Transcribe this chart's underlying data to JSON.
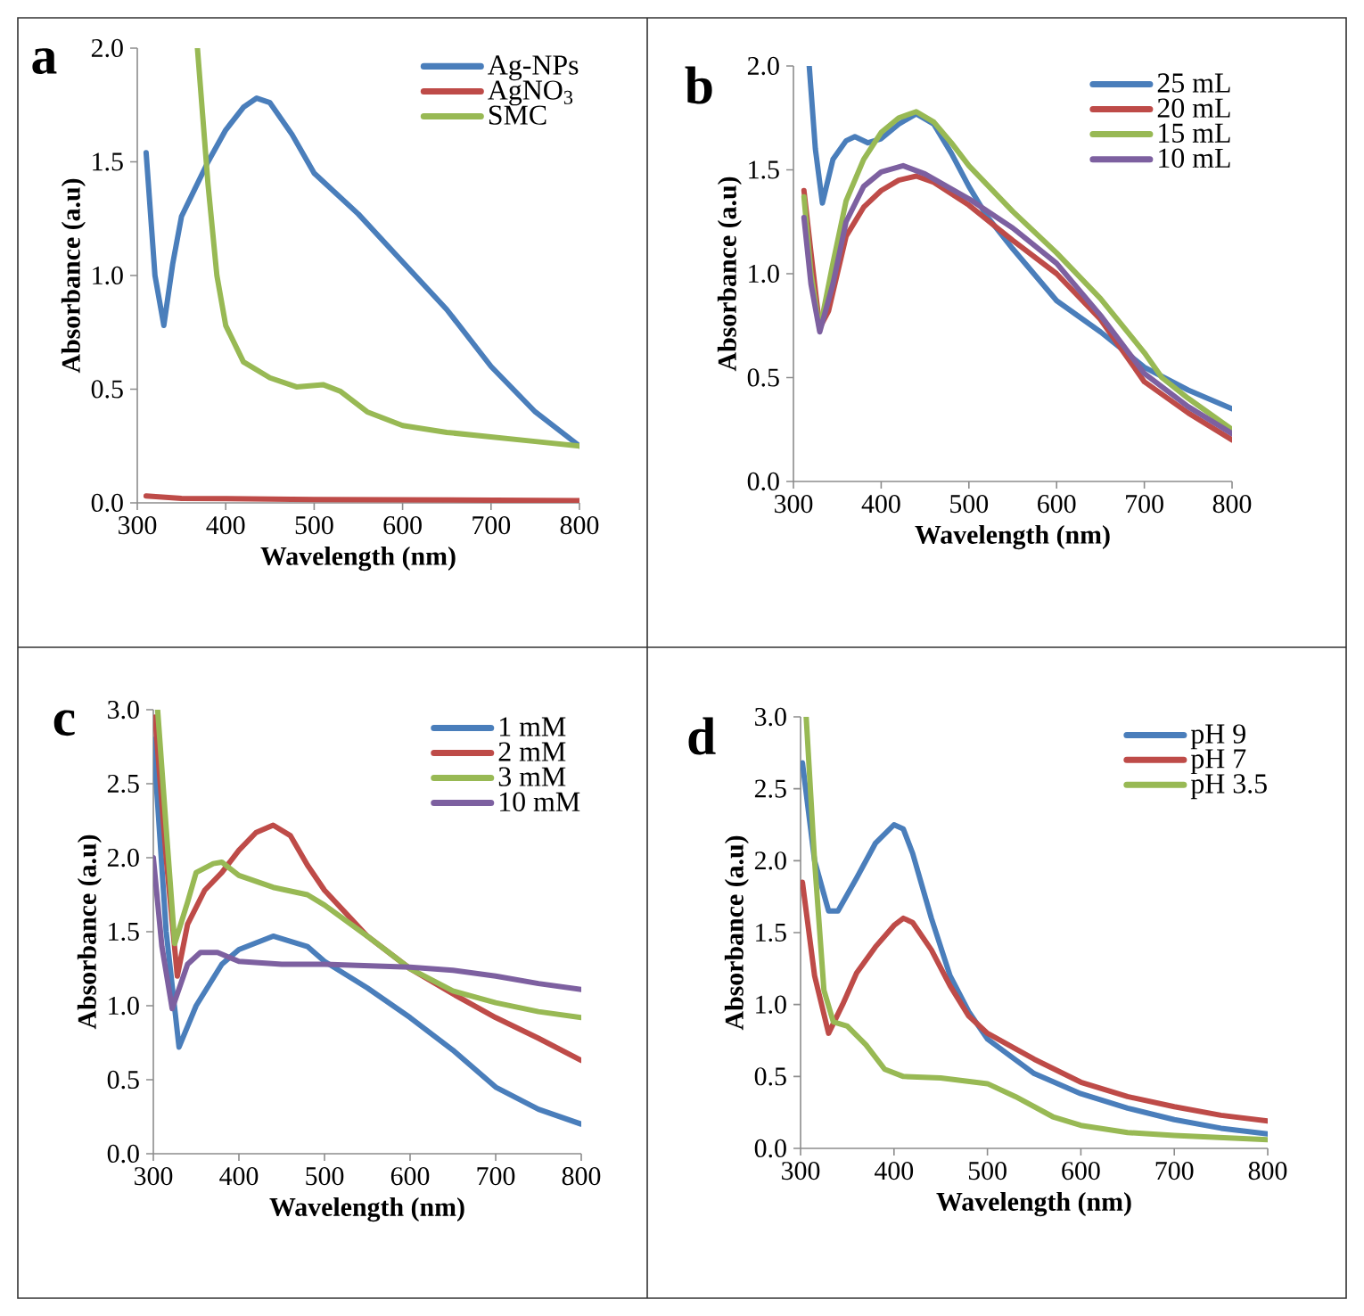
{
  "chart_data": [
    {
      "type": "line",
      "title": "a",
      "xlabel": "Wavelength (nm)",
      "ylabel": "Absorbance (a.u)",
      "xlim": [
        300,
        800
      ],
      "ylim": [
        0,
        2
      ],
      "xticks": [
        300,
        400,
        500,
        600,
        700,
        800
      ],
      "yticks": [
        {
          "value": 0,
          "label": "0.0"
        },
        {
          "value": 0.5,
          "label": "0.5"
        },
        {
          "value": 1,
          "label": "1.0"
        },
        {
          "value": 1.5,
          "label": "1.5"
        },
        {
          "value": 2,
          "label": "2.0"
        }
      ],
      "legend": "top right",
      "series": [
        {
          "name": "Ag-NPs",
          "color": "#4a7ebb",
          "x": [
            310,
            320,
            330,
            340,
            350,
            365,
            380,
            400,
            420,
            435,
            450,
            475,
            500,
            550,
            600,
            650,
            700,
            750,
            800
          ],
          "values": [
            1.54,
            1.0,
            0.78,
            1.05,
            1.26,
            1.38,
            1.5,
            1.64,
            1.74,
            1.78,
            1.76,
            1.62,
            1.45,
            1.27,
            1.06,
            0.85,
            0.6,
            0.4,
            0.25
          ]
        },
        {
          "name": "AgNO$_{3}$",
          "color": "#be4b48",
          "x": [
            310,
            350,
            500,
            800
          ],
          "values": [
            0.03,
            0.02,
            0.015,
            0.01
          ]
        },
        {
          "name": "SMC",
          "color": "#98b954",
          "x": [
            368,
            380,
            390,
            400,
            420,
            450,
            480,
            510,
            530,
            560,
            600,
            650,
            700,
            750,
            800
          ],
          "values": [
            2.0,
            1.4,
            1.0,
            0.78,
            0.62,
            0.55,
            0.51,
            0.52,
            0.49,
            0.4,
            0.34,
            0.31,
            0.29,
            0.27,
            0.25
          ]
        }
      ]
    },
    {
      "type": "line",
      "title": "b",
      "xlabel": "Wavelength (nm)",
      "ylabel": "Absorbance (a.u)",
      "xlim": [
        300,
        800
      ],
      "ylim": [
        0,
        2
      ],
      "xticks": [
        300,
        400,
        500,
        600,
        700,
        800
      ],
      "yticks": [
        {
          "value": 0,
          "label": "0.0"
        },
        {
          "value": 0.5,
          "label": "0.5"
        },
        {
          "value": 1,
          "label": "1.0"
        },
        {
          "value": 1.5,
          "label": "1.5"
        },
        {
          "value": 2,
          "label": "2.0"
        }
      ],
      "legend": "top right",
      "series": [
        {
          "name": "25 mL",
          "color": "#4a7ebb",
          "x": [
            318,
            325,
            333,
            345,
            360,
            370,
            385,
            400,
            420,
            440,
            460,
            480,
            500,
            520,
            550,
            600,
            650,
            700,
            750,
            800
          ],
          "values": [
            2.0,
            1.6,
            1.34,
            1.55,
            1.64,
            1.66,
            1.63,
            1.65,
            1.72,
            1.77,
            1.72,
            1.58,
            1.42,
            1.28,
            1.12,
            0.87,
            0.72,
            0.55,
            0.44,
            0.35
          ]
        },
        {
          "name": "20 mL",
          "color": "#be4b48",
          "x": [
            312,
            320,
            330,
            340,
            360,
            380,
            400,
            420,
            440,
            460,
            500,
            550,
            600,
            650,
            700,
            750,
            800
          ],
          "values": [
            1.4,
            1.1,
            0.74,
            0.82,
            1.18,
            1.32,
            1.4,
            1.45,
            1.47,
            1.44,
            1.33,
            1.16,
            1.0,
            0.78,
            0.48,
            0.33,
            0.2
          ]
        },
        {
          "name": "15 mL",
          "color": "#98b954",
          "x": [
            312,
            320,
            330,
            345,
            360,
            380,
            400,
            420,
            440,
            460,
            480,
            500,
            550,
            600,
            650,
            700,
            720,
            750,
            800
          ],
          "values": [
            1.37,
            1.0,
            0.73,
            1.05,
            1.35,
            1.55,
            1.68,
            1.75,
            1.78,
            1.73,
            1.63,
            1.52,
            1.3,
            1.1,
            0.88,
            0.62,
            0.5,
            0.4,
            0.25
          ]
        },
        {
          "name": "10 mL",
          "color": "#7d60a0",
          "x": [
            312,
            320,
            330,
            345,
            360,
            380,
            400,
            425,
            450,
            500,
            550,
            600,
            650,
            700,
            750,
            800
          ],
          "values": [
            1.27,
            0.95,
            0.72,
            0.95,
            1.25,
            1.42,
            1.49,
            1.52,
            1.48,
            1.36,
            1.22,
            1.05,
            0.8,
            0.52,
            0.36,
            0.23
          ]
        }
      ]
    },
    {
      "type": "line",
      "title": "c",
      "xlabel": "Wavelength (nm)",
      "ylabel": "Absorbance (a.u)",
      "xlim": [
        300,
        800
      ],
      "ylim": [
        0,
        3
      ],
      "xticks": [
        300,
        400,
        500,
        600,
        700,
        800
      ],
      "yticks": [
        {
          "value": 0,
          "label": "0.0"
        },
        {
          "value": 0.5,
          "label": "0.5"
        },
        {
          "value": 1,
          "label": "1.0"
        },
        {
          "value": 1.5,
          "label": "1.5"
        },
        {
          "value": 2,
          "label": "2.0"
        },
        {
          "value": 2.5,
          "label": "2.5"
        },
        {
          "value": 3,
          "label": "3.0"
        }
      ],
      "legend": "top right",
      "series": [
        {
          "name": "1 mM",
          "color": "#4a7ebb",
          "x": [
            300,
            315,
            330,
            350,
            380,
            400,
            440,
            480,
            500,
            550,
            600,
            650,
            700,
            750,
            800
          ],
          "values": [
            2.8,
            1.5,
            0.72,
            1.0,
            1.28,
            1.38,
            1.47,
            1.4,
            1.3,
            1.12,
            0.92,
            0.7,
            0.45,
            0.3,
            0.2
          ]
        },
        {
          "name": "2 mM",
          "color": "#be4b48",
          "x": [
            302,
            315,
            328,
            340,
            360,
            380,
            400,
            420,
            440,
            460,
            480,
            500,
            550,
            600,
            650,
            700,
            750,
            800
          ],
          "values": [
            2.95,
            2.0,
            1.2,
            1.55,
            1.78,
            1.9,
            2.05,
            2.17,
            2.22,
            2.15,
            1.95,
            1.78,
            1.47,
            1.25,
            1.08,
            0.92,
            0.78,
            0.63
          ]
        },
        {
          "name": "3 mM",
          "color": "#98b954",
          "x": [
            305,
            315,
            325,
            340,
            350,
            370,
            380,
            400,
            440,
            480,
            500,
            550,
            600,
            650,
            700,
            750,
            800
          ],
          "values": [
            3.0,
            2.2,
            1.42,
            1.7,
            1.9,
            1.96,
            1.97,
            1.88,
            1.8,
            1.75,
            1.68,
            1.47,
            1.25,
            1.1,
            1.02,
            0.96,
            0.92
          ]
        },
        {
          "name": "10 mM",
          "color": "#7d60a0",
          "x": [
            300,
            310,
            322,
            340,
            355,
            375,
            400,
            450,
            500,
            600,
            650,
            700,
            750,
            800
          ],
          "values": [
            2.0,
            1.4,
            0.98,
            1.28,
            1.36,
            1.36,
            1.3,
            1.28,
            1.28,
            1.26,
            1.24,
            1.2,
            1.15,
            1.11
          ]
        }
      ]
    },
    {
      "type": "line",
      "title": "d",
      "xlabel": "Wavelength (nm)",
      "ylabel": "Absorbance (a.u)",
      "xlim": [
        300,
        800
      ],
      "ylim": [
        0,
        3
      ],
      "xticks": [
        300,
        400,
        500,
        600,
        700,
        800
      ],
      "yticks": [
        {
          "value": 0,
          "label": "0.0"
        },
        {
          "value": 0.5,
          "label": "0.5"
        },
        {
          "value": 1,
          "label": "1.0"
        },
        {
          "value": 1.5,
          "label": "1.5"
        },
        {
          "value": 2,
          "label": "2.0"
        },
        {
          "value": 2.5,
          "label": "2.5"
        },
        {
          "value": 3,
          "label": "3.0"
        }
      ],
      "legend": "top right",
      "series": [
        {
          "name": "pH 9",
          "color": "#4a7ebb",
          "x": [
            302,
            315,
            330,
            340,
            360,
            380,
            400,
            410,
            420,
            440,
            460,
            480,
            500,
            550,
            600,
            650,
            700,
            750,
            800
          ],
          "values": [
            2.68,
            2.0,
            1.65,
            1.65,
            1.88,
            2.12,
            2.25,
            2.22,
            2.05,
            1.6,
            1.2,
            0.95,
            0.76,
            0.52,
            0.38,
            0.28,
            0.2,
            0.14,
            0.1
          ]
        },
        {
          "name": "pH 7",
          "color": "#be4b48",
          "x": [
            302,
            315,
            330,
            345,
            360,
            380,
            400,
            410,
            420,
            440,
            460,
            480,
            500,
            550,
            600,
            650,
            700,
            750,
            800
          ],
          "values": [
            1.85,
            1.2,
            0.8,
            1.0,
            1.22,
            1.4,
            1.55,
            1.6,
            1.57,
            1.38,
            1.13,
            0.92,
            0.8,
            0.62,
            0.46,
            0.36,
            0.29,
            0.23,
            0.19
          ]
        },
        {
          "name": "pH 3.5",
          "color": "#98b954",
          "x": [
            306,
            315,
            325,
            335,
            350,
            370,
            390,
            410,
            450,
            500,
            530,
            570,
            600,
            650,
            700,
            800
          ],
          "values": [
            3.0,
            2.0,
            1.1,
            0.88,
            0.85,
            0.72,
            0.55,
            0.5,
            0.49,
            0.45,
            0.36,
            0.22,
            0.16,
            0.11,
            0.09,
            0.06
          ]
        }
      ]
    }
  ]
}
